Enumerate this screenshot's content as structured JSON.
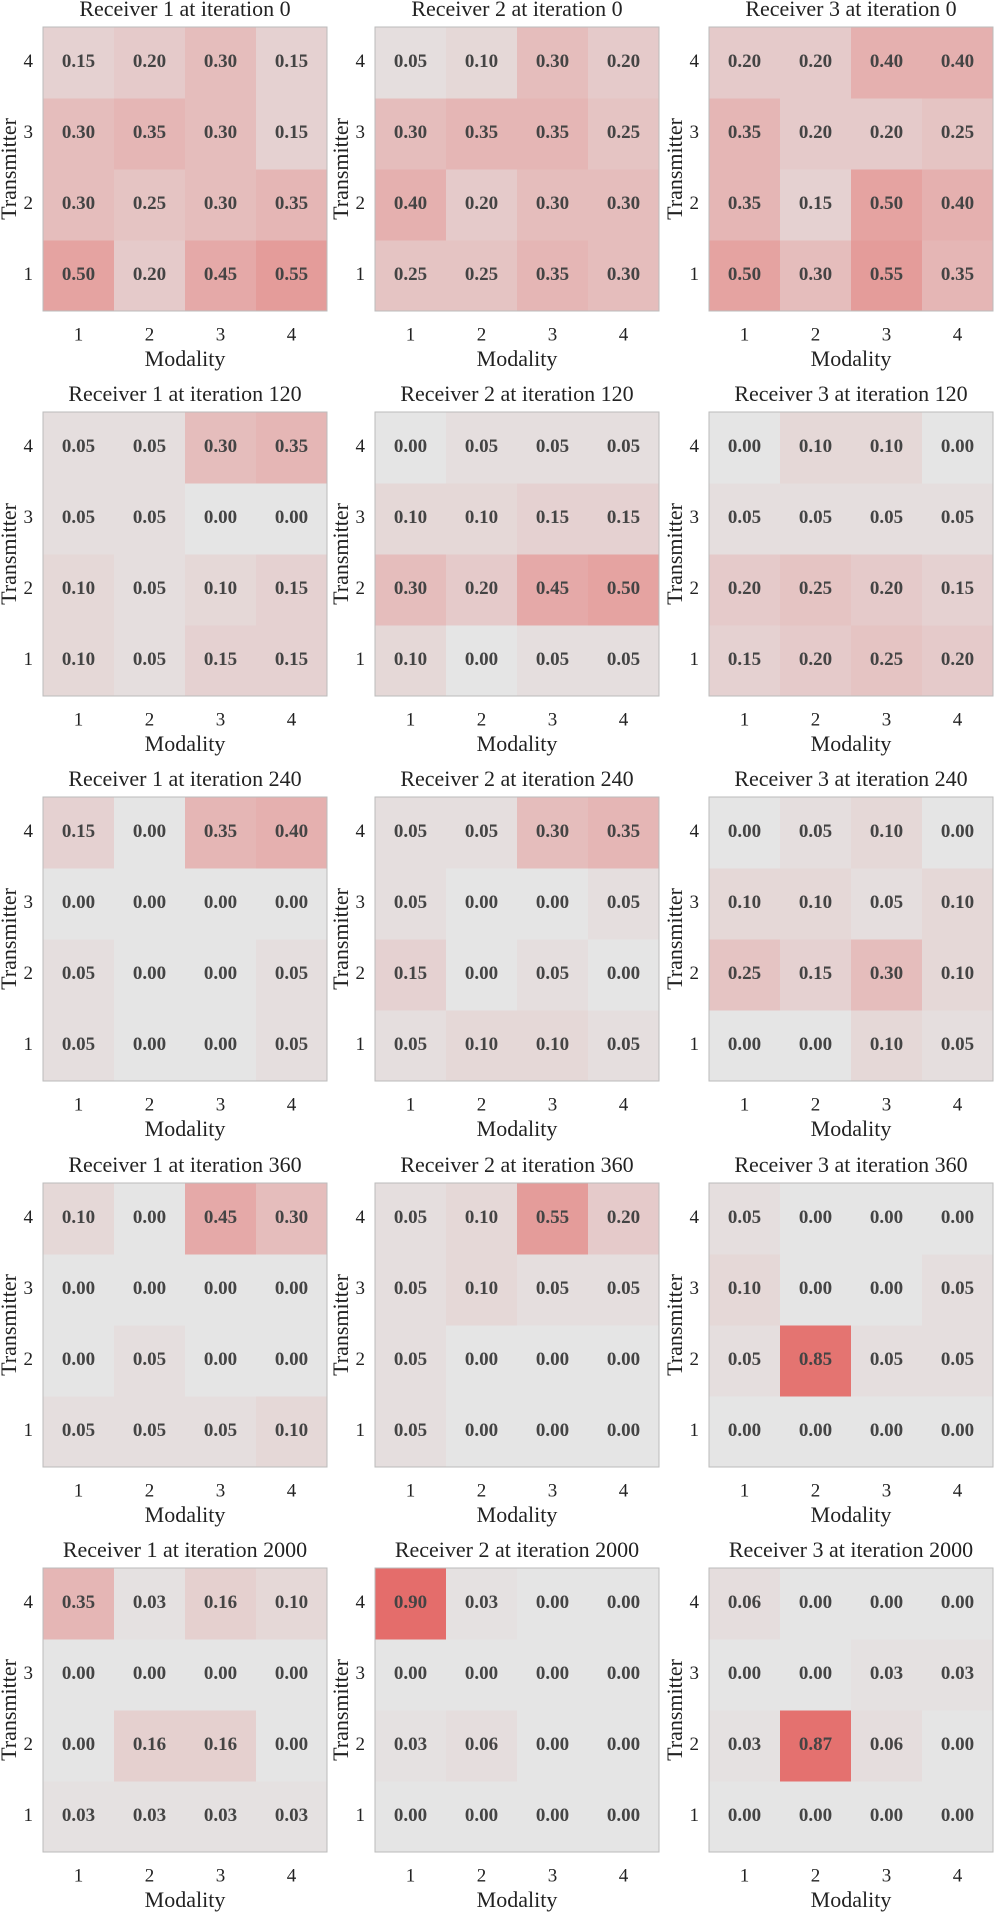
{
  "chart_data": [
    {
      "type": "heatmap",
      "title": "Receiver 1 at iteration 0",
      "x_label": "Modality",
      "y_label": "Transmitter",
      "x_categories": [
        1,
        2,
        3,
        4
      ],
      "y_categories": [
        1,
        2,
        3,
        4
      ],
      "clim": [
        0,
        1
      ],
      "colors": [
        "#e5e5e5",
        "#e4605d"
      ],
      "values": [
        [
          0.5,
          0.2,
          0.45,
          0.55
        ],
        [
          0.3,
          0.25,
          0.3,
          0.35
        ],
        [
          0.3,
          0.35,
          0.3,
          0.15
        ],
        [
          0.15,
          0.2,
          0.3,
          0.15
        ]
      ],
      "value_labels": [
        [
          "0.50",
          "0.20",
          "0.45",
          "0.55"
        ],
        [
          "0.30",
          "0.25",
          "0.30",
          "0.35"
        ],
        [
          "0.30",
          "0.35",
          "0.30",
          "0.15"
        ],
        [
          "0.15",
          "0.20",
          "0.30",
          "0.15"
        ]
      ]
    },
    {
      "type": "heatmap",
      "title": "Receiver 2 at iteration 0",
      "x_label": "Modality",
      "y_label": "Transmitter",
      "x_categories": [
        1,
        2,
        3,
        4
      ],
      "y_categories": [
        1,
        2,
        3,
        4
      ],
      "clim": [
        0,
        1
      ],
      "colors": [
        "#e5e5e5",
        "#e4605d"
      ],
      "values": [
        [
          0.25,
          0.25,
          0.35,
          0.3
        ],
        [
          0.4,
          0.2,
          0.3,
          0.3
        ],
        [
          0.3,
          0.35,
          0.35,
          0.25
        ],
        [
          0.05,
          0.1,
          0.3,
          0.2
        ]
      ],
      "value_labels": [
        [
          "0.25",
          "0.25",
          "0.35",
          "0.30"
        ],
        [
          "0.40",
          "0.20",
          "0.30",
          "0.30"
        ],
        [
          "0.30",
          "0.35",
          "0.35",
          "0.25"
        ],
        [
          "0.05",
          "0.10",
          "0.30",
          "0.20"
        ]
      ]
    },
    {
      "type": "heatmap",
      "title": "Receiver 3 at iteration 0",
      "x_label": "Modality",
      "y_label": "Transmitter",
      "x_categories": [
        1,
        2,
        3,
        4
      ],
      "y_categories": [
        1,
        2,
        3,
        4
      ],
      "clim": [
        0,
        1
      ],
      "colors": [
        "#e5e5e5",
        "#e4605d"
      ],
      "values": [
        [
          0.5,
          0.3,
          0.55,
          0.35
        ],
        [
          0.35,
          0.15,
          0.5,
          0.4
        ],
        [
          0.35,
          0.2,
          0.2,
          0.25
        ],
        [
          0.2,
          0.2,
          0.4,
          0.4
        ]
      ],
      "value_labels": [
        [
          "0.50",
          "0.30",
          "0.55",
          "0.35"
        ],
        [
          "0.35",
          "0.15",
          "0.50",
          "0.40"
        ],
        [
          "0.35",
          "0.20",
          "0.20",
          "0.25"
        ],
        [
          "0.20",
          "0.20",
          "0.40",
          "0.40"
        ]
      ]
    },
    {
      "type": "heatmap",
      "title": "Receiver 1 at iteration 120",
      "x_label": "Modality",
      "y_label": "Transmitter",
      "x_categories": [
        1,
        2,
        3,
        4
      ],
      "y_categories": [
        1,
        2,
        3,
        4
      ],
      "clim": [
        0,
        1
      ],
      "colors": [
        "#e5e5e5",
        "#e4605d"
      ],
      "values": [
        [
          0.1,
          0.05,
          0.15,
          0.15
        ],
        [
          0.1,
          0.05,
          0.1,
          0.15
        ],
        [
          0.05,
          0.05,
          0,
          0
        ],
        [
          0.05,
          0.05,
          0.3,
          0.35
        ]
      ],
      "value_labels": [
        [
          "0.10",
          "0.05",
          "0.15",
          "0.15"
        ],
        [
          "0.10",
          "0.05",
          "0.10",
          "0.15"
        ],
        [
          "0.05",
          "0.05",
          "0.00",
          "0.00"
        ],
        [
          "0.05",
          "0.05",
          "0.30",
          "0.35"
        ]
      ]
    },
    {
      "type": "heatmap",
      "title": "Receiver 2 at iteration 120",
      "x_label": "Modality",
      "y_label": "Transmitter",
      "x_categories": [
        1,
        2,
        3,
        4
      ],
      "y_categories": [
        1,
        2,
        3,
        4
      ],
      "clim": [
        0,
        1
      ],
      "colors": [
        "#e5e5e5",
        "#e4605d"
      ],
      "values": [
        [
          0.1,
          0,
          0.05,
          0.05
        ],
        [
          0.3,
          0.2,
          0.45,
          0.5
        ],
        [
          0.1,
          0.1,
          0.15,
          0.15
        ],
        [
          0,
          0.05,
          0.05,
          0.05
        ]
      ],
      "value_labels": [
        [
          "0.10",
          "0.00",
          "0.05",
          "0.05"
        ],
        [
          "0.30",
          "0.20",
          "0.45",
          "0.50"
        ],
        [
          "0.10",
          "0.10",
          "0.15",
          "0.15"
        ],
        [
          "0.00",
          "0.05",
          "0.05",
          "0.05"
        ]
      ]
    },
    {
      "type": "heatmap",
      "title": "Receiver 3 at iteration 120",
      "x_label": "Modality",
      "y_label": "Transmitter",
      "x_categories": [
        1,
        2,
        3,
        4
      ],
      "y_categories": [
        1,
        2,
        3,
        4
      ],
      "clim": [
        0,
        1
      ],
      "colors": [
        "#e5e5e5",
        "#e4605d"
      ],
      "values": [
        [
          0.15,
          0.2,
          0.25,
          0.2
        ],
        [
          0.2,
          0.25,
          0.2,
          0.15
        ],
        [
          0.05,
          0.05,
          0.05,
          0.05
        ],
        [
          0,
          0.1,
          0.1,
          0
        ]
      ],
      "value_labels": [
        [
          "0.15",
          "0.20",
          "0.25",
          "0.20"
        ],
        [
          "0.20",
          "0.25",
          "0.20",
          "0.15"
        ],
        [
          "0.05",
          "0.05",
          "0.05",
          "0.05"
        ],
        [
          "0.00",
          "0.10",
          "0.10",
          "0.00"
        ]
      ]
    },
    {
      "type": "heatmap",
      "title": "Receiver 1 at iteration 240",
      "x_label": "Modality",
      "y_label": "Transmitter",
      "x_categories": [
        1,
        2,
        3,
        4
      ],
      "y_categories": [
        1,
        2,
        3,
        4
      ],
      "clim": [
        0,
        1
      ],
      "colors": [
        "#e5e5e5",
        "#e4605d"
      ],
      "values": [
        [
          0.05,
          0,
          0,
          0.05
        ],
        [
          0.05,
          0,
          0,
          0.05
        ],
        [
          0,
          0,
          0,
          0
        ],
        [
          0.15,
          0,
          0.35,
          0.4
        ]
      ],
      "value_labels": [
        [
          "0.05",
          "0.00",
          "0.00",
          "0.05"
        ],
        [
          "0.05",
          "0.00",
          "0.00",
          "0.05"
        ],
        [
          "0.00",
          "0.00",
          "0.00",
          "0.00"
        ],
        [
          "0.15",
          "0.00",
          "0.35",
          "0.40"
        ]
      ]
    },
    {
      "type": "heatmap",
      "title": "Receiver 2 at iteration 240",
      "x_label": "Modality",
      "y_label": "Transmitter",
      "x_categories": [
        1,
        2,
        3,
        4
      ],
      "y_categories": [
        1,
        2,
        3,
        4
      ],
      "clim": [
        0,
        1
      ],
      "colors": [
        "#e5e5e5",
        "#e4605d"
      ],
      "values": [
        [
          0.05,
          0.1,
          0.1,
          0.05
        ],
        [
          0.15,
          0,
          0.05,
          0
        ],
        [
          0.05,
          0,
          0,
          0.05
        ],
        [
          0.05,
          0.05,
          0.3,
          0.35
        ]
      ],
      "value_labels": [
        [
          "0.05",
          "0.10",
          "0.10",
          "0.05"
        ],
        [
          "0.15",
          "0.00",
          "0.05",
          "0.00"
        ],
        [
          "0.05",
          "0.00",
          "0.00",
          "0.05"
        ],
        [
          "0.05",
          "0.05",
          "0.30",
          "0.35"
        ]
      ]
    },
    {
      "type": "heatmap",
      "title": "Receiver 3 at iteration 240",
      "x_label": "Modality",
      "y_label": "Transmitter",
      "x_categories": [
        1,
        2,
        3,
        4
      ],
      "y_categories": [
        1,
        2,
        3,
        4
      ],
      "clim": [
        0,
        1
      ],
      "colors": [
        "#e5e5e5",
        "#e4605d"
      ],
      "values": [
        [
          0,
          0,
          0.1,
          0.05
        ],
        [
          0.25,
          0.15,
          0.3,
          0.1
        ],
        [
          0.1,
          0.1,
          0.05,
          0.1
        ],
        [
          0,
          0.05,
          0.1,
          0
        ]
      ],
      "value_labels": [
        [
          "0.00",
          "0.00",
          "0.10",
          "0.05"
        ],
        [
          "0.25",
          "0.15",
          "0.30",
          "0.10"
        ],
        [
          "0.10",
          "0.10",
          "0.05",
          "0.10"
        ],
        [
          "0.00",
          "0.05",
          "0.10",
          "0.00"
        ]
      ]
    },
    {
      "type": "heatmap",
      "title": "Receiver 1 at iteration 360",
      "x_label": "Modality",
      "y_label": "Transmitter",
      "x_categories": [
        1,
        2,
        3,
        4
      ],
      "y_categories": [
        1,
        2,
        3,
        4
      ],
      "clim": [
        0,
        1
      ],
      "colors": [
        "#e5e5e5",
        "#e4605d"
      ],
      "values": [
        [
          0.05,
          0.05,
          0.05,
          0.1
        ],
        [
          0,
          0.05,
          0,
          0
        ],
        [
          0,
          0,
          0,
          0
        ],
        [
          0.1,
          0,
          0.45,
          0.3
        ]
      ],
      "value_labels": [
        [
          "0.05",
          "0.05",
          "0.05",
          "0.10"
        ],
        [
          "0.00",
          "0.05",
          "0.00",
          "0.00"
        ],
        [
          "0.00",
          "0.00",
          "0.00",
          "0.00"
        ],
        [
          "0.10",
          "0.00",
          "0.45",
          "0.30"
        ]
      ]
    },
    {
      "type": "heatmap",
      "title": "Receiver 2 at iteration 360",
      "x_label": "Modality",
      "y_label": "Transmitter",
      "x_categories": [
        1,
        2,
        3,
        4
      ],
      "y_categories": [
        1,
        2,
        3,
        4
      ],
      "clim": [
        0,
        1
      ],
      "colors": [
        "#e5e5e5",
        "#e4605d"
      ],
      "values": [
        [
          0.05,
          0,
          0,
          0
        ],
        [
          0.05,
          0,
          0,
          0
        ],
        [
          0.05,
          0.1,
          0.05,
          0.05
        ],
        [
          0.05,
          0.1,
          0.55,
          0.2
        ]
      ],
      "value_labels": [
        [
          "0.05",
          "0.00",
          "0.00",
          "0.00"
        ],
        [
          "0.05",
          "0.00",
          "0.00",
          "0.00"
        ],
        [
          "0.05",
          "0.10",
          "0.05",
          "0.05"
        ],
        [
          "0.05",
          "0.10",
          "0.55",
          "0.20"
        ]
      ]
    },
    {
      "type": "heatmap",
      "title": "Receiver 3 at iteration 360",
      "x_label": "Modality",
      "y_label": "Transmitter",
      "x_categories": [
        1,
        2,
        3,
        4
      ],
      "y_categories": [
        1,
        2,
        3,
        4
      ],
      "clim": [
        0,
        1
      ],
      "colors": [
        "#e5e5e5",
        "#e4605d"
      ],
      "values": [
        [
          0,
          0,
          0,
          0
        ],
        [
          0.05,
          0.85,
          0.05,
          0.05
        ],
        [
          0.1,
          0,
          0,
          0.05
        ],
        [
          0.05,
          0,
          0,
          0
        ]
      ],
      "value_labels": [
        [
          "0.00",
          "0.00",
          "0.00",
          "0.00"
        ],
        [
          "0.05",
          "0.85",
          "0.05",
          "0.05"
        ],
        [
          "0.10",
          "0.00",
          "0.00",
          "0.05"
        ],
        [
          "0.05",
          "0.00",
          "0.00",
          "0.00"
        ]
      ]
    },
    {
      "type": "heatmap",
      "title": "Receiver 1 at iteration 2000",
      "x_label": "Modality",
      "y_label": "Transmitter",
      "x_categories": [
        1,
        2,
        3,
        4
      ],
      "y_categories": [
        1,
        2,
        3,
        4
      ],
      "clim": [
        0,
        1
      ],
      "colors": [
        "#e5e5e5",
        "#e4605d"
      ],
      "values": [
        [
          0.03,
          0.03,
          0.03,
          0.03
        ],
        [
          0,
          0.16,
          0.16,
          0
        ],
        [
          0,
          0,
          0,
          0
        ],
        [
          0.35,
          0.03,
          0.16,
          0.1
        ]
      ],
      "value_labels": [
        [
          "0.03",
          "0.03",
          "0.03",
          "0.03"
        ],
        [
          "0.00",
          "0.16",
          "0.16",
          "0.00"
        ],
        [
          "0.00",
          "0.00",
          "0.00",
          "0.00"
        ],
        [
          "0.35",
          "0.03",
          "0.16",
          "0.10"
        ]
      ]
    },
    {
      "type": "heatmap",
      "title": "Receiver 2 at iteration 2000",
      "x_label": "Modality",
      "y_label": "Transmitter",
      "x_categories": [
        1,
        2,
        3,
        4
      ],
      "y_categories": [
        1,
        2,
        3,
        4
      ],
      "clim": [
        0,
        1
      ],
      "colors": [
        "#e5e5e5",
        "#e4605d"
      ],
      "values": [
        [
          0,
          0,
          0,
          0
        ],
        [
          0.03,
          0.06,
          0,
          0
        ],
        [
          0,
          0,
          0,
          0
        ],
        [
          0.9,
          0.03,
          0,
          0
        ]
      ],
      "value_labels": [
        [
          "0.00",
          "0.00",
          "0.00",
          "0.00"
        ],
        [
          "0.03",
          "0.06",
          "0.00",
          "0.00"
        ],
        [
          "0.00",
          "0.00",
          "0.00",
          "0.00"
        ],
        [
          "0.90",
          "0.03",
          "0.00",
          "0.00"
        ]
      ]
    },
    {
      "type": "heatmap",
      "title": "Receiver 3 at iteration 2000",
      "x_label": "Modality",
      "y_label": "Transmitter",
      "x_categories": [
        1,
        2,
        3,
        4
      ],
      "y_categories": [
        1,
        2,
        3,
        4
      ],
      "clim": [
        0,
        1
      ],
      "colors": [
        "#e5e5e5",
        "#e4605d"
      ],
      "values": [
        [
          0,
          0,
          0,
          0
        ],
        [
          0.03,
          0.87,
          0.06,
          0
        ],
        [
          0,
          0,
          0.03,
          0.03
        ],
        [
          0.06,
          0,
          0,
          0
        ]
      ],
      "value_labels": [
        [
          "0.00",
          "0.00",
          "0.00",
          "0.00"
        ],
        [
          "0.03",
          "0.87",
          "0.06",
          "0.00"
        ],
        [
          "0.00",
          "0.00",
          "0.03",
          "0.03"
        ],
        [
          "0.06",
          "0.00",
          "0.00",
          "0.00"
        ]
      ]
    }
  ]
}
